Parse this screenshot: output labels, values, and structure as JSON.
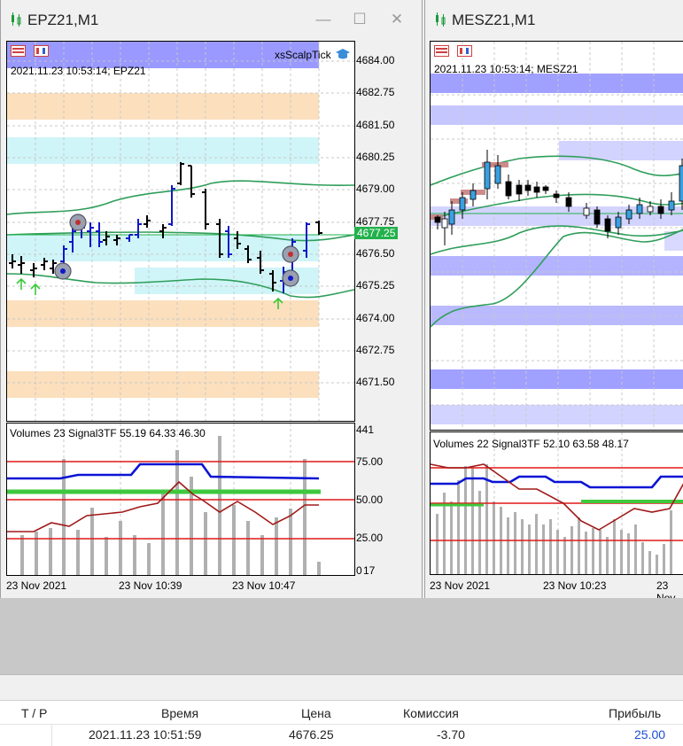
{
  "windows": [
    {
      "title": "EPZ21,M1",
      "info": "2021.11.23 10:53:14; EPZ21",
      "indicator_name": "xsScalpTick",
      "price_labels": [
        "4684.00",
        "4682.75",
        "4681.50",
        "4680.25",
        "4679.00",
        "4677.75",
        "4676.50",
        "4675.25",
        "4674.00",
        "4672.75",
        "4671.50"
      ],
      "current_price": "4677.25",
      "sub_title": "Volumes 23 Signal3TF 55.19 64.33 46.30",
      "sub_labels": [
        "441",
        "75.00",
        "50.00",
        "25.00",
        "0",
        "17"
      ],
      "time_labels": [
        "23 Nov 2021",
        "23 Nov 10:39",
        "23 Nov 10:47"
      ]
    },
    {
      "title": "MESZ21,M1",
      "info": "2021.11.23 10:53:14; MESZ21",
      "sub_title": "Volumes 22 Signal3TF 52.10 63.58 48.17",
      "time_labels": [
        "23 Nov 2021",
        "23 Nov 10:23",
        "23 Nov"
      ]
    }
  ],
  "colors": {
    "accent_green": "#22b14c",
    "band_blue": "#8080ff",
    "band_orange": "#fcd9b0",
    "band_cyan": "#cff5f8",
    "signal_blue": "#0a14d4",
    "signal_green": "#3ec83e",
    "signal_red": "#a01818"
  },
  "table": {
    "headers": [
      "T / P",
      "Время",
      "Цена",
      "Комиссия",
      "Прибыль"
    ],
    "row": [
      "",
      "2021.11.23 10:51:59",
      "4676.25",
      "-3.70",
      "25.00"
    ]
  }
}
